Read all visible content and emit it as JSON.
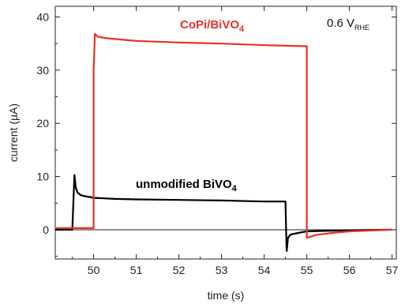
{
  "chart_data": {
    "type": "line",
    "title": "",
    "xlabel": "time (s)",
    "ylabel": "current (µA)",
    "xlim": [
      49.1,
      57.1
    ],
    "ylim": [
      -5.5,
      42
    ],
    "x_ticks": [
      50,
      51,
      52,
      53,
      54,
      55,
      56,
      57
    ],
    "y_ticks": [
      0,
      10,
      20,
      30,
      40
    ],
    "grid": false,
    "condition_label": {
      "main": "0.6 V",
      "sub": "RHE"
    },
    "series": [
      {
        "name": "unmodified BiVO4",
        "label_main": "unmodified BiVO",
        "label_sub": "4",
        "color": "#000000",
        "x": [
          49.1,
          49.5,
          49.55,
          49.58,
          49.62,
          49.7,
          49.8,
          50.0,
          50.5,
          51.0,
          52.0,
          53.0,
          54.0,
          54.5,
          54.52,
          54.53,
          54.56,
          54.62,
          54.8,
          55.0,
          55.5,
          56.0,
          57.0
        ],
        "values": [
          0.0,
          0.0,
          10.3,
          8.0,
          7.0,
          6.5,
          6.3,
          6.0,
          5.8,
          5.7,
          5.6,
          5.5,
          5.3,
          5.3,
          -2.0,
          -4.0,
          -1.5,
          -0.9,
          -0.6,
          -0.3,
          -0.2,
          -0.1,
          0.0
        ]
      },
      {
        "name": "CoPi/BiVO4",
        "label_main": "CoPi/BiVO",
        "label_sub": "4",
        "color": "#e8302b",
        "x": [
          49.1,
          50.0,
          50.0,
          50.03,
          50.1,
          50.3,
          50.7,
          51.0,
          52.0,
          53.0,
          54.0,
          55.0,
          55.0,
          55.05,
          55.2,
          55.6,
          56.0,
          57.0
        ],
        "values": [
          0.3,
          0.3,
          30.0,
          36.8,
          36.3,
          36.0,
          35.7,
          35.5,
          35.2,
          35.0,
          34.7,
          34.5,
          -1.5,
          -1.4,
          -1.0,
          -0.6,
          -0.3,
          0.0
        ]
      }
    ]
  }
}
